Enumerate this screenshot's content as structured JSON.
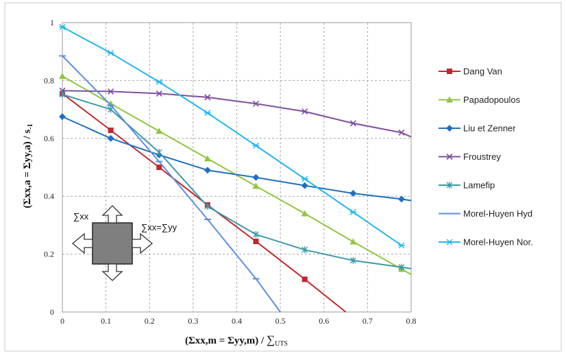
{
  "chart_data": {
    "type": "line",
    "xlabel_main": "(Σxx,m = Σyy,m) / ",
    "xlabel_sum": "∑",
    "xlabel_sub": "UTS",
    "ylabel_main": "(Σxx,a = Σyy,a) / s",
    "ylabel_sub": "-1",
    "xlim": [
      0,
      0.8
    ],
    "ylim": [
      0,
      1
    ],
    "x_ticks": [
      "0",
      "0.1",
      "0.2",
      "0.3",
      "0.4",
      "0.5",
      "0.6",
      "0.7",
      "0.8"
    ],
    "y_ticks": [
      "0",
      "0.2",
      "0.4",
      "0.6",
      "0.8",
      "1"
    ],
    "grid": true,
    "legend_position": "right",
    "series": [
      {
        "name": "Dang Van",
        "color": "#c0282d",
        "marker": "square",
        "x": [
          0,
          0.111,
          0.222,
          0.333,
          0.444,
          0.556,
          0.65
        ],
        "y": [
          0.755,
          0.628,
          0.5,
          0.37,
          0.244,
          0.113,
          0
        ]
      },
      {
        "name": "Papadopoulos",
        "color": "#8fc640",
        "marker": "triangle",
        "x": [
          0,
          0.111,
          0.222,
          0.333,
          0.444,
          0.556,
          0.667,
          0.778,
          0.8
        ],
        "y": [
          0.815,
          0.72,
          0.625,
          0.53,
          0.435,
          0.34,
          0.243,
          0.148,
          0.13
        ]
      },
      {
        "name": "Liu et Zenner",
        "color": "#1e6fc0",
        "marker": "diamond",
        "x": [
          0,
          0.111,
          0.222,
          0.333,
          0.444,
          0.556,
          0.667,
          0.778,
          0.8
        ],
        "y": [
          0.675,
          0.6,
          0.543,
          0.49,
          0.465,
          0.437,
          0.41,
          0.39,
          0.385
        ]
      },
      {
        "name": "Froustrey",
        "color": "#7d4ea0",
        "marker": "cross",
        "x": [
          0,
          0.111,
          0.222,
          0.333,
          0.444,
          0.556,
          0.667,
          0.778,
          0.8
        ],
        "y": [
          0.765,
          0.762,
          0.755,
          0.742,
          0.72,
          0.693,
          0.652,
          0.62,
          0.605
        ]
      },
      {
        "name": "Lamefip",
        "color": "#3a9aa8",
        "marker": "star",
        "x": [
          0,
          0.111,
          0.222,
          0.333,
          0.444,
          0.556,
          0.667,
          0.778,
          0.8
        ],
        "y": [
          0.752,
          0.7,
          0.552,
          0.365,
          0.268,
          0.215,
          0.178,
          0.155,
          0.15
        ]
      },
      {
        "name": "Morel-Huyen Hyd",
        "color": "#5b8ee0",
        "marker": "dash",
        "x": [
          0,
          0.111,
          0.222,
          0.333,
          0.444,
          0.5
        ],
        "y": [
          0.885,
          0.715,
          0.52,
          0.32,
          0.115,
          0
        ]
      },
      {
        "name": "Morel-Huyen Nor.",
        "color": "#1fb6ee",
        "marker": "asterisk",
        "x": [
          0,
          0.111,
          0.222,
          0.333,
          0.444,
          0.556,
          0.667,
          0.778
        ],
        "y": [
          0.985,
          0.895,
          0.795,
          0.688,
          0.575,
          0.46,
          0.345,
          0.23
        ]
      }
    ]
  },
  "inset": {
    "label_sxx": "∑xx",
    "label_eq": "∑xx=∑yy"
  }
}
